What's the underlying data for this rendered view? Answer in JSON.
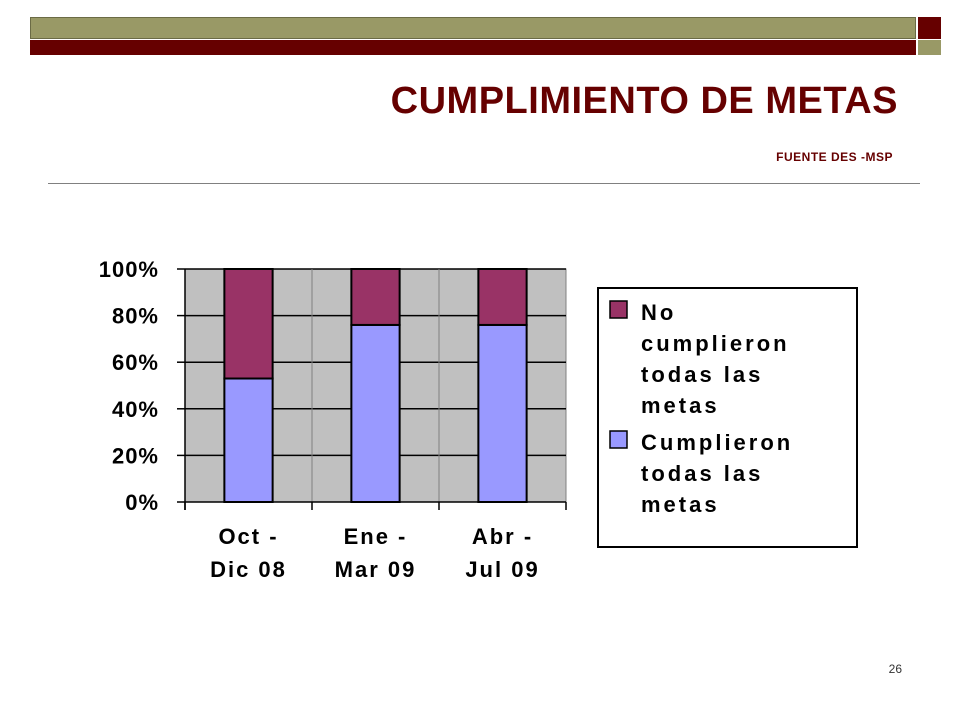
{
  "slide": {
    "title": "CUMPLIMIENTO DE METAS",
    "source": "FUENTE DES -MSP",
    "page_number": "26",
    "colors": {
      "band_olive": "#999966",
      "band_dark": "#660000",
      "title": "#660000"
    }
  },
  "chart_data": {
    "type": "bar",
    "stacked": true,
    "percent_stacked": true,
    "categories": [
      [
        "Oct -",
        "Dic 08"
      ],
      [
        "Ene -",
        "Mar 09"
      ],
      [
        "Abr -",
        "Jul 09"
      ]
    ],
    "series": [
      {
        "name": "Cumplieron todas las metas",
        "legend_lines": [
          "Cumplieron",
          "todas las",
          "metas"
        ],
        "color": "#9999ff",
        "values": [
          53,
          76,
          76
        ]
      },
      {
        "name": "No cumplieron todas las metas",
        "legend_lines": [
          "No",
          "cumplieron",
          "todas las",
          "metas"
        ],
        "color": "#993366",
        "values": [
          47,
          24,
          24
        ]
      }
    ],
    "ylim": [
      0,
      100
    ],
    "yticks": [
      "0%",
      "20%",
      "40%",
      "60%",
      "80%",
      "100%"
    ],
    "grid": true,
    "plot_background": "#c0c0c0",
    "legend_position": "right"
  }
}
